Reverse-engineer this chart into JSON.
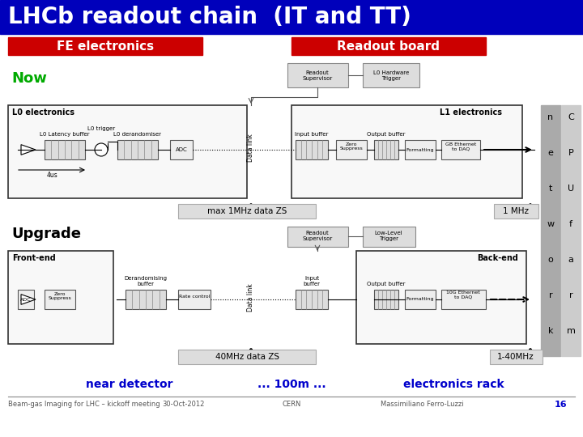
{
  "title": "LHCb readout chain  (IT and TT)",
  "title_bg": "#0000BB",
  "title_color": "white",
  "title_fontsize": 20,
  "fe_label": "FE electronics",
  "fe_bg": "#CC0000",
  "readout_label": "Readout board",
  "readout_bg": "#CC0000",
  "label_color": "white",
  "now_label": "Now",
  "now_color": "#00AA00",
  "upgrade_label": "Upgrade",
  "upgrade_color": "#000000",
  "max1mhz_label": "max 1MHz data ZS",
  "onemhz_label": "1 MHz",
  "fortyMHz_label": "40MHz data ZS",
  "onefortyMHz_label": "1-40MHz",
  "near_detector": "near detector",
  "dots_100m": "... 100m ...",
  "electronics_rack": "electronics rack",
  "footer_left": "Beam-gas Imaging for LHC – kickoff meeting",
  "footer_date": "30-Oct-2012",
  "footer_center": "CERN",
  "footer_right": "Massimiliano Ferro-Luzzi",
  "footer_num": "16",
  "bg_color": "#FFFFFF",
  "network_letters": [
    "n",
    "e",
    "t",
    "w",
    "o",
    "r",
    "k"
  ],
  "cpu_letters": [
    "C",
    "P",
    "U",
    "f",
    "a",
    "r",
    "m"
  ],
  "network_bg": "#AAAAAA",
  "cpu_bg": "#BBBBBB"
}
